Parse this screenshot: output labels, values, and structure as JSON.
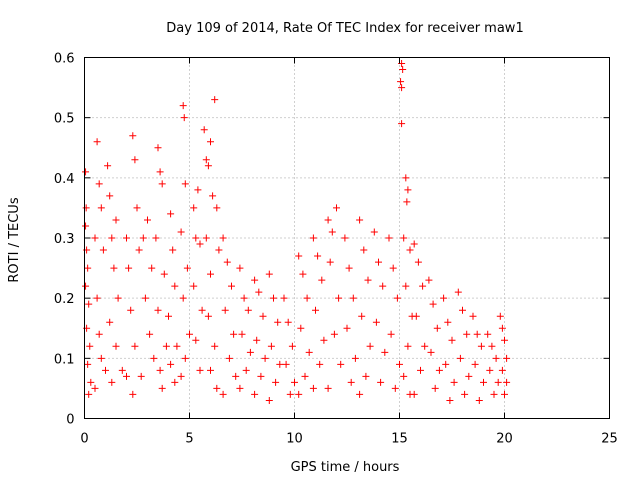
{
  "chart_data": {
    "type": "scatter",
    "title": "Day 109 of 2014, Rate Of TEC Index for receiver maw1",
    "xlabel": "GPS time / hours",
    "ylabel": "ROTI / TECUs",
    "xlim": [
      0,
      25
    ],
    "ylim": [
      0,
      0.6
    ],
    "x_ticks": [
      0,
      5,
      10,
      15,
      20,
      25
    ],
    "y_ticks": [
      0,
      0.1,
      0.2,
      0.3,
      0.4,
      0.5,
      0.6
    ],
    "x_tick_labels": [
      "0",
      "5",
      "10",
      "15",
      "20",
      "25"
    ],
    "y_tick_labels": [
      "0",
      "0.1",
      "0.2",
      "0.3",
      "0.4",
      "0.5",
      "0.6"
    ],
    "grid": true,
    "legend": "none",
    "marker": "plus",
    "color": "#ff0000",
    "points": [
      [
        0.05,
        0.41
      ],
      [
        0.08,
        0.35
      ],
      [
        0.05,
        0.32
      ],
      [
        0.1,
        0.28
      ],
      [
        0.15,
        0.25
      ],
      [
        0.05,
        0.22
      ],
      [
        0.2,
        0.19
      ],
      [
        0.1,
        0.15
      ],
      [
        0.25,
        0.12
      ],
      [
        0.15,
        0.09
      ],
      [
        0.3,
        0.06
      ],
      [
        0.2,
        0.04
      ],
      [
        0.5,
        0.3
      ],
      [
        0.6,
        0.46
      ],
      [
        0.7,
        0.39
      ],
      [
        0.8,
        0.35
      ],
      [
        0.9,
        0.28
      ],
      [
        0.6,
        0.2
      ],
      [
        0.7,
        0.14
      ],
      [
        0.8,
        0.1
      ],
      [
        1.0,
        0.08
      ],
      [
        0.5,
        0.05
      ],
      [
        1.1,
        0.42
      ],
      [
        1.2,
        0.37
      ],
      [
        1.3,
        0.3
      ],
      [
        1.5,
        0.33
      ],
      [
        1.4,
        0.25
      ],
      [
        1.6,
        0.2
      ],
      [
        1.2,
        0.16
      ],
      [
        1.5,
        0.12
      ],
      [
        1.8,
        0.08
      ],
      [
        1.3,
        0.06
      ],
      [
        2.0,
        0.3
      ],
      [
        2.1,
        0.25
      ],
      [
        2.3,
        0.47
      ],
      [
        2.4,
        0.43
      ],
      [
        2.5,
        0.35
      ],
      [
        2.6,
        0.28
      ],
      [
        2.2,
        0.18
      ],
      [
        2.4,
        0.12
      ],
      [
        2.0,
        0.07
      ],
      [
        2.3,
        0.04
      ],
      [
        2.8,
        0.3
      ],
      [
        3.0,
        0.33
      ],
      [
        3.2,
        0.25
      ],
      [
        2.9,
        0.2
      ],
      [
        3.1,
        0.14
      ],
      [
        3.3,
        0.1
      ],
      [
        2.7,
        0.07
      ],
      [
        3.5,
        0.45
      ],
      [
        3.6,
        0.41
      ],
      [
        3.7,
        0.39
      ],
      [
        3.4,
        0.3
      ],
      [
        3.8,
        0.24
      ],
      [
        3.5,
        0.18
      ],
      [
        3.9,
        0.12
      ],
      [
        3.6,
        0.08
      ],
      [
        3.7,
        0.05
      ],
      [
        4.1,
        0.34
      ],
      [
        4.2,
        0.28
      ],
      [
        4.3,
        0.22
      ],
      [
        4.0,
        0.17
      ],
      [
        4.4,
        0.12
      ],
      [
        4.1,
        0.09
      ],
      [
        4.3,
        0.06
      ],
      [
        4.7,
        0.52
      ],
      [
        4.75,
        0.5
      ],
      [
        4.8,
        0.39
      ],
      [
        4.6,
        0.31
      ],
      [
        4.9,
        0.25
      ],
      [
        4.7,
        0.2
      ],
      [
        5.0,
        0.14
      ],
      [
        4.8,
        0.1
      ],
      [
        4.6,
        0.07
      ],
      [
        5.2,
        0.35
      ],
      [
        5.3,
        0.3
      ],
      [
        5.4,
        0.38
      ],
      [
        5.5,
        0.29
      ],
      [
        5.2,
        0.22
      ],
      [
        5.6,
        0.18
      ],
      [
        5.3,
        0.13
      ],
      [
        5.5,
        0.08
      ],
      [
        5.7,
        0.48
      ],
      [
        5.8,
        0.43
      ],
      [
        5.9,
        0.42
      ],
      [
        6.0,
        0.46
      ],
      [
        6.2,
        0.53
      ],
      [
        6.1,
        0.37
      ],
      [
        5.8,
        0.3
      ],
      [
        6.3,
        0.35
      ],
      [
        6.0,
        0.24
      ],
      [
        6.4,
        0.28
      ],
      [
        5.9,
        0.17
      ],
      [
        6.2,
        0.12
      ],
      [
        6.0,
        0.08
      ],
      [
        6.3,
        0.05
      ],
      [
        6.6,
        0.3
      ],
      [
        6.8,
        0.26
      ],
      [
        7.0,
        0.22
      ],
      [
        6.7,
        0.18
      ],
      [
        7.1,
        0.14
      ],
      [
        6.9,
        0.1
      ],
      [
        7.2,
        0.07
      ],
      [
        6.6,
        0.04
      ],
      [
        7.4,
        0.25
      ],
      [
        7.6,
        0.2
      ],
      [
        7.8,
        0.18
      ],
      [
        7.5,
        0.14
      ],
      [
        7.9,
        0.11
      ],
      [
        7.7,
        0.08
      ],
      [
        7.4,
        0.05
      ],
      [
        8.1,
        0.23
      ],
      [
        8.3,
        0.21
      ],
      [
        8.5,
        0.17
      ],
      [
        8.2,
        0.13
      ],
      [
        8.6,
        0.1
      ],
      [
        8.4,
        0.07
      ],
      [
        8.1,
        0.04
      ],
      [
        8.8,
        0.24
      ],
      [
        9.0,
        0.2
      ],
      [
        9.2,
        0.16
      ],
      [
        8.9,
        0.12
      ],
      [
        9.3,
        0.09
      ],
      [
        9.1,
        0.06
      ],
      [
        8.8,
        0.03
      ],
      [
        9.5,
        0.2
      ],
      [
        9.7,
        0.16
      ],
      [
        9.9,
        0.12
      ],
      [
        9.6,
        0.09
      ],
      [
        10.0,
        0.06
      ],
      [
        9.8,
        0.04
      ],
      [
        10.2,
        0.27
      ],
      [
        10.4,
        0.24
      ],
      [
        10.6,
        0.2
      ],
      [
        10.3,
        0.15
      ],
      [
        10.7,
        0.11
      ],
      [
        10.5,
        0.07
      ],
      [
        10.2,
        0.04
      ],
      [
        10.9,
        0.3
      ],
      [
        11.1,
        0.27
      ],
      [
        11.3,
        0.23
      ],
      [
        11.0,
        0.18
      ],
      [
        11.4,
        0.13
      ],
      [
        11.2,
        0.09
      ],
      [
        10.9,
        0.05
      ],
      [
        11.6,
        0.33
      ],
      [
        11.8,
        0.31
      ],
      [
        12.0,
        0.35
      ],
      [
        11.7,
        0.26
      ],
      [
        12.1,
        0.2
      ],
      [
        11.9,
        0.14
      ],
      [
        12.2,
        0.09
      ],
      [
        11.6,
        0.05
      ],
      [
        12.4,
        0.3
      ],
      [
        12.6,
        0.25
      ],
      [
        12.8,
        0.2
      ],
      [
        12.5,
        0.15
      ],
      [
        12.9,
        0.1
      ],
      [
        12.7,
        0.06
      ],
      [
        13.1,
        0.33
      ],
      [
        13.3,
        0.28
      ],
      [
        13.5,
        0.23
      ],
      [
        13.2,
        0.17
      ],
      [
        13.6,
        0.12
      ],
      [
        13.4,
        0.07
      ],
      [
        13.1,
        0.04
      ],
      [
        13.8,
        0.31
      ],
      [
        14.0,
        0.26
      ],
      [
        14.2,
        0.22
      ],
      [
        13.9,
        0.16
      ],
      [
        14.3,
        0.11
      ],
      [
        14.1,
        0.06
      ],
      [
        14.5,
        0.3
      ],
      [
        14.7,
        0.25
      ],
      [
        14.9,
        0.2
      ],
      [
        14.6,
        0.14
      ],
      [
        15.0,
        0.09
      ],
      [
        14.8,
        0.05
      ],
      [
        15.1,
        0.59
      ],
      [
        15.15,
        0.58
      ],
      [
        15.05,
        0.56
      ],
      [
        15.1,
        0.55
      ],
      [
        15.1,
        0.49
      ],
      [
        15.3,
        0.4
      ],
      [
        15.4,
        0.38
      ],
      [
        15.35,
        0.36
      ],
      [
        15.2,
        0.3
      ],
      [
        15.5,
        0.28
      ],
      [
        15.3,
        0.22
      ],
      [
        15.6,
        0.17
      ],
      [
        15.4,
        0.12
      ],
      [
        15.2,
        0.07
      ],
      [
        15.5,
        0.04
      ],
      [
        15.7,
        0.29
      ],
      [
        15.9,
        0.26
      ],
      [
        16.1,
        0.22
      ],
      [
        15.8,
        0.17
      ],
      [
        16.2,
        0.12
      ],
      [
        16.0,
        0.08
      ],
      [
        15.7,
        0.04
      ],
      [
        16.4,
        0.23
      ],
      [
        16.6,
        0.19
      ],
      [
        16.8,
        0.15
      ],
      [
        16.5,
        0.11
      ],
      [
        16.9,
        0.08
      ],
      [
        16.7,
        0.05
      ],
      [
        17.1,
        0.2
      ],
      [
        17.3,
        0.16
      ],
      [
        17.5,
        0.13
      ],
      [
        17.2,
        0.09
      ],
      [
        17.6,
        0.06
      ],
      [
        17.4,
        0.03
      ],
      [
        17.8,
        0.21
      ],
      [
        18.0,
        0.18
      ],
      [
        18.2,
        0.14
      ],
      [
        17.9,
        0.1
      ],
      [
        18.3,
        0.07
      ],
      [
        18.1,
        0.04
      ],
      [
        18.5,
        0.17
      ],
      [
        18.7,
        0.14
      ],
      [
        18.9,
        0.12
      ],
      [
        18.6,
        0.09
      ],
      [
        19.0,
        0.06
      ],
      [
        18.8,
        0.03
      ],
      [
        19.2,
        0.14
      ],
      [
        19.4,
        0.12
      ],
      [
        19.6,
        0.1
      ],
      [
        19.3,
        0.08
      ],
      [
        19.7,
        0.06
      ],
      [
        19.5,
        0.04
      ],
      [
        19.8,
        0.17
      ],
      [
        19.9,
        0.15
      ],
      [
        20.0,
        0.13
      ],
      [
        20.1,
        0.1
      ],
      [
        19.9,
        0.08
      ],
      [
        20.1,
        0.06
      ],
      [
        20.0,
        0.04
      ]
    ]
  }
}
